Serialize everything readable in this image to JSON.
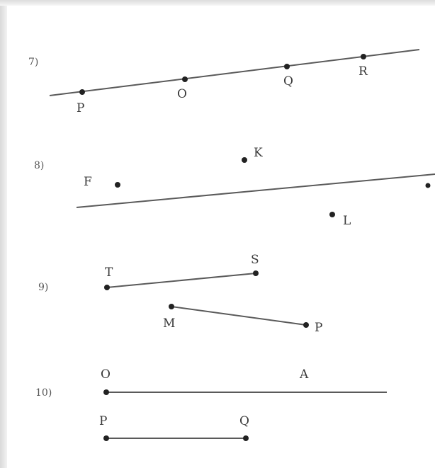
{
  "problems": [
    {
      "number": "7)",
      "labels": {
        "P": "P",
        "O": "O",
        "Q": "Q",
        "R": "R"
      }
    },
    {
      "number": "8)",
      "labels": {
        "F": "F",
        "K": "K",
        "L": "L"
      }
    },
    {
      "number": "9)",
      "labels": {
        "T": "T",
        "S": "S",
        "M": "M",
        "P": "P"
      }
    },
    {
      "number": "10)",
      "labels": {
        "O": "O",
        "A": "A",
        "P": "P",
        "Q": "Q"
      }
    }
  ]
}
